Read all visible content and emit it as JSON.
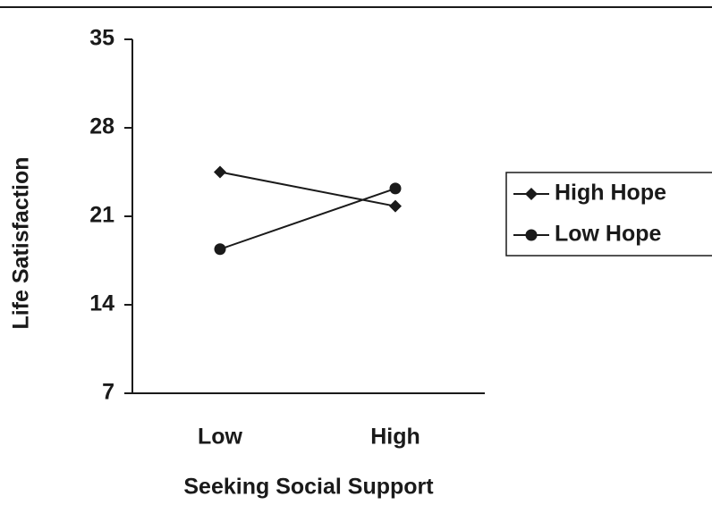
{
  "chart_data": {
    "type": "line",
    "categories": [
      "Low",
      "High"
    ],
    "series": [
      {
        "name": "High Hope",
        "color": "#1a1a1a",
        "marker": "diamond",
        "values": [
          24.5,
          21.8
        ]
      },
      {
        "name": "Low Hope",
        "color": "#1a1a1a",
        "marker": "circle",
        "values": [
          18.4,
          23.2
        ]
      }
    ],
    "x_label": "Seeking Social Support",
    "y_label": "Life Satisfaction",
    "ylim": [
      7,
      35
    ],
    "yticks": [
      7,
      14,
      21,
      28,
      35
    ],
    "grid": false,
    "legend": "right"
  }
}
